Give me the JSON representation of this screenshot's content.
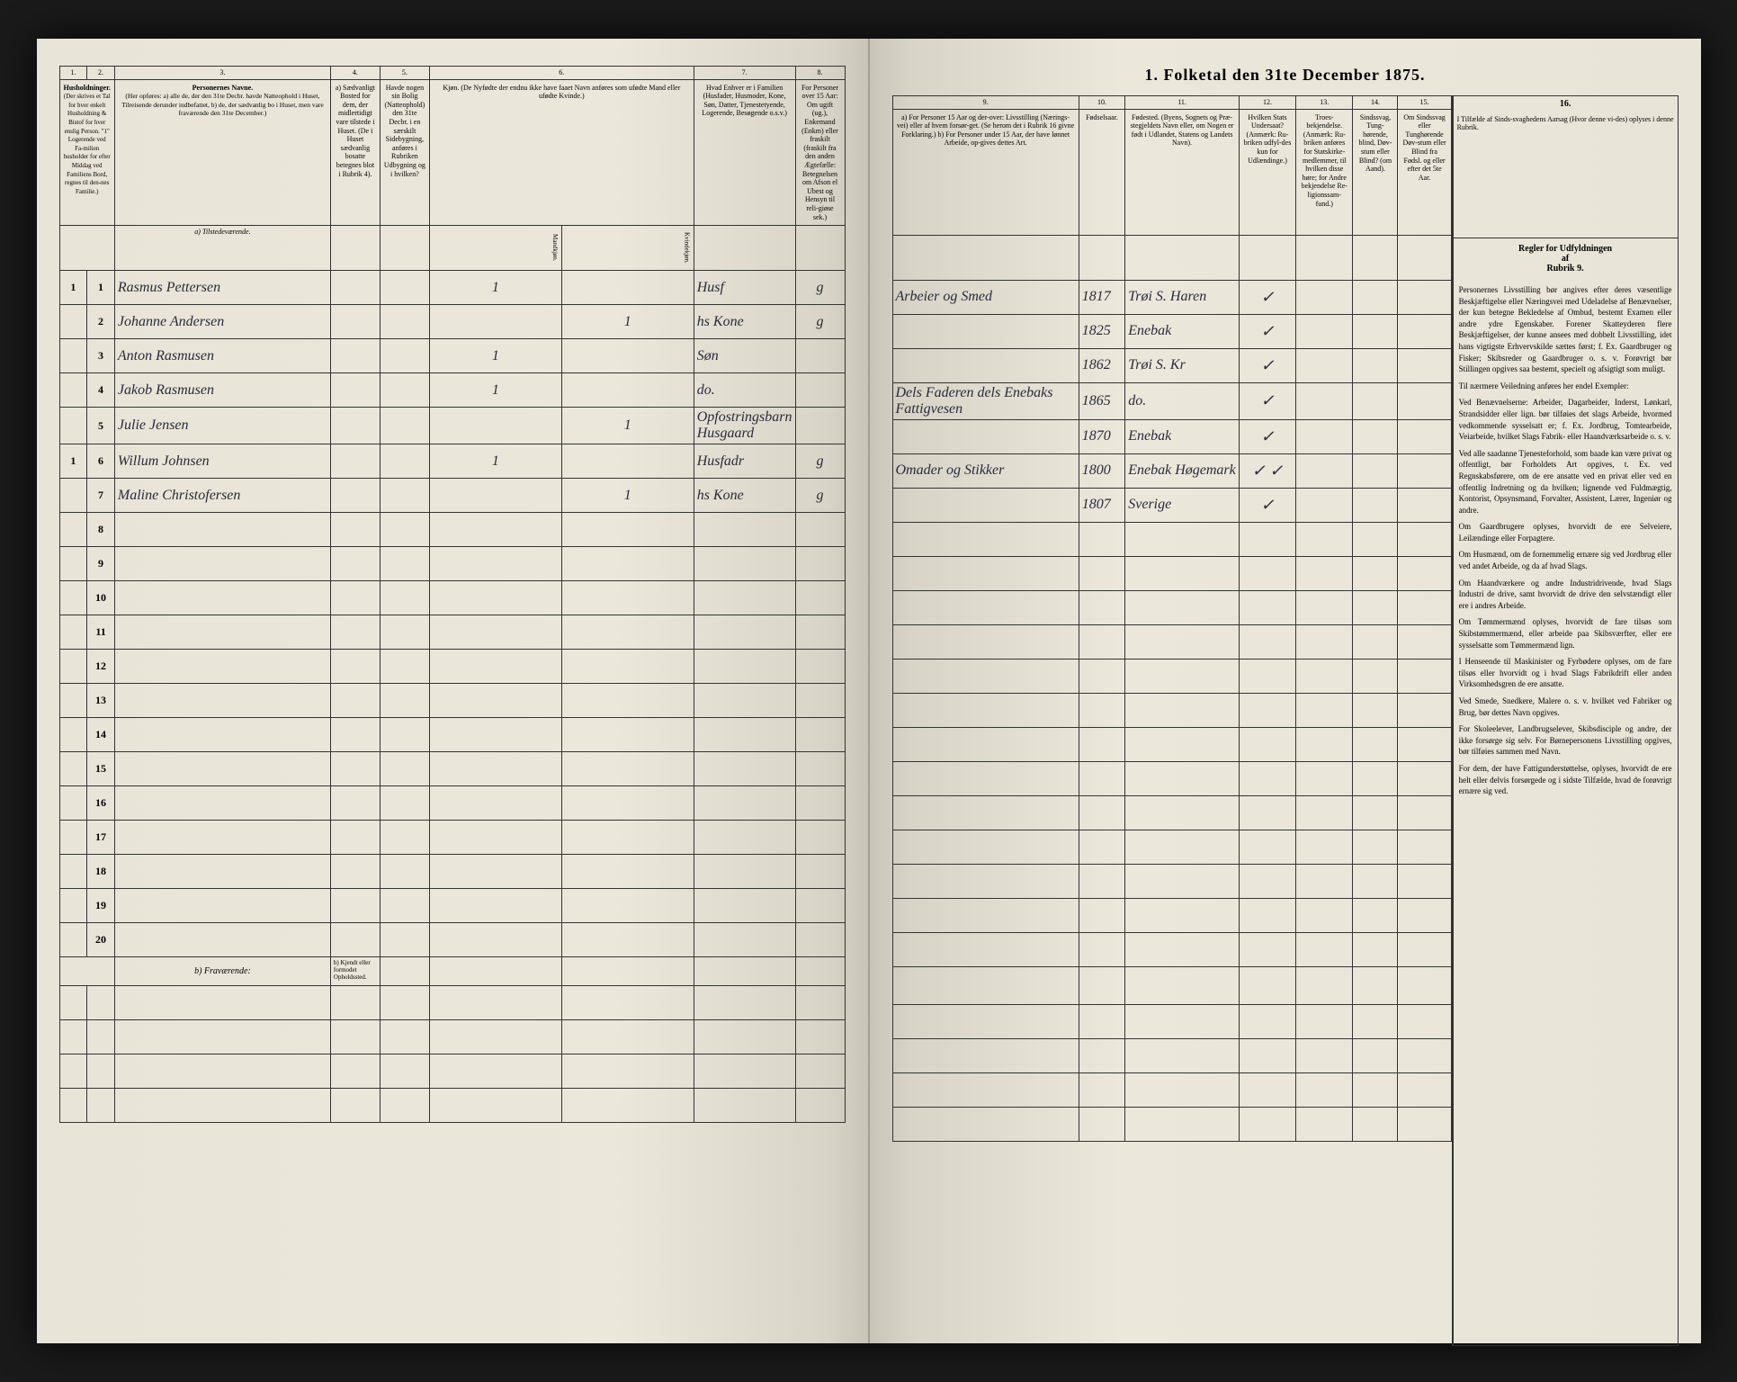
{
  "title": "1. Folketal den 31te December 1875.",
  "left_columns": {
    "c1": "1.",
    "c2": "2.",
    "c3": "3.",
    "c4": "4.",
    "c5": "5.",
    "c6": "6.",
    "c7": "7.",
    "c8": "8."
  },
  "left_headers": {
    "h1": "Husholdninger.",
    "h1_sub": "(Der skrives et Tal for hver enkelt Husholdning & Bistof for hver enslig Person.\n\n\"1\" Logerende ved Fa-milien husholder for efter Middag ved Familiens Bord, regnes til den-nes Familie.)",
    "h3": "Personernes Navne.",
    "h3_sub": "(Her opføres:\na) alle de, der den 31te Decbr. havde Natteophold i Huset, Tilreisende derunder indbefattet,\nb) de, der sædvanlig bo i Huset, men vare fraværende den 31te December.)",
    "h3_section_a": "a) Tilstedeværende.",
    "h3_section_b": "b) Fraværende:",
    "h3_footnote": "b) Kjendt eller formodet Opholdssted.",
    "h4": "a) Sædvanligt Bosted for dem, der midlertidigt vare tilstede i Huset. (De i Huset sædvanlig bosatte betegnes blot i Rubrik 4).",
    "h5": "Havde nogen sin Bolig (Natteophold) den 31te Decbr. i en særskilt Sidebygning, anføres i Rubriken Udbygning og i hvilken?",
    "h6": "Kjøn.\n(De Nyfødte der endnu ikke have faaet Navn anføres som ufødte Mand eller ufødte Kvinde.)",
    "h6_m": "Mandkjøn.",
    "h6_k": "Kvindekjøn.",
    "h7": "Hvad Enhver er i Familien\n(Husfader, Husmoder, Kone, Søn, Datter, Tjenestetyende, Logerende, Besøgende o.s.v.)",
    "h8": "For Personer over 15 Aar: Om ugift (ug.), Enkemand (Enkm) eller fraskilt (fraskilt fra den anden Ægtefælle: Betegnelsen om Afson el Ubest og Hensyn til reli-giøse sek.)"
  },
  "right_columns": {
    "c9": "9.",
    "c10": "10.",
    "c11": "11.",
    "c12": "12.",
    "c13": "13.",
    "c14": "14.",
    "c15": "15.",
    "c16": "16."
  },
  "right_headers": {
    "h9": "a) For Personer 15 Aar og der-over: Livsstilling (Nærings-vei) eller af hvem forsør-get. (Se herom det i Rubrik 16 givne Forklaring.)\nb) For Personer under 15 Aar, der have lønnet Arbeide, op-gives dettes Art.",
    "h10": "Fødselsaar.",
    "h11": "Fødested.\n(Byens, Sognets og Præ-stegjeldets Navn eller, om Nogen er født i Udlandet, Statens og Landets Navn).",
    "h12": "Hvilken Stats Undersaat?\n(Anmærk: Ru-briken udfyl-des kun for Udlændinge.)",
    "h13": "Troes-bekjendelse.\n(Anmærk: Ru-briken anføres for Statskirke-medlemmer, til hvilken disse høre; for Andre bekjendelse Re-ligionssam-fund.)",
    "h14": "Sindssvag, Tung-hørende, blind, Døv-stum eller Blind? (om Aand).",
    "h15": "Om Sindssvag eller Tunghørende Døv-stum eller Blind fra Fødsl. og eller efter det 5te Aar.",
    "h16": "I Tilfælde af Sinds-svaghedens Aarsag (Hvor denne vi-des) oplyses i denne Rubrik."
  },
  "persons": [
    {
      "num": "1",
      "hh": "1",
      "name": "Rasmus Pettersen",
      "sex_m": "1",
      "sex_k": "",
      "rel": "Husf",
      "mar": "g",
      "occ": "Arbeier og Smed",
      "year": "1817",
      "place": "Trøi S. Haren",
      "c12": "✓"
    },
    {
      "num": "2",
      "hh": "",
      "name": "Johanne Andersen",
      "sex_m": "",
      "sex_k": "1",
      "rel": "hs Kone",
      "mar": "g",
      "occ": "",
      "year": "1825",
      "place": "Enebak",
      "c12": "✓"
    },
    {
      "num": "3",
      "hh": "",
      "name": "Anton Rasmusen",
      "sex_m": "1",
      "sex_k": "",
      "rel": "Søn",
      "mar": "",
      "occ": "",
      "year": "1862",
      "place": "Trøi S. Kr",
      "c12": "✓"
    },
    {
      "num": "4",
      "hh": "",
      "name": "Jakob Rasmusen",
      "sex_m": "1",
      "sex_k": "",
      "rel": "do.",
      "mar": "",
      "occ": "Dels Faderen dels Enebaks Fattigvesen",
      "year": "1865",
      "place": "do.",
      "c12": "✓"
    },
    {
      "num": "5",
      "hh": "",
      "name": "Julie Jensen",
      "sex_m": "",
      "sex_k": "1",
      "rel": "Opfostringsbarn Husgaard",
      "mar": "",
      "occ": "",
      "year": "1870",
      "place": "Enebak",
      "c12": "✓"
    },
    {
      "num": "6",
      "hh": "1",
      "name": "Willum Johnsen",
      "sex_m": "1",
      "sex_k": "",
      "rel": "Husfadr",
      "mar": "g",
      "occ": "Omader og Stikker",
      "year": "1800",
      "place": "Enebak Høgemark",
      "c12": "✓ ✓"
    },
    {
      "num": "7",
      "hh": "",
      "name": "Maline Christofersen",
      "sex_m": "",
      "sex_k": "1",
      "rel": "hs Kone",
      "mar": "g",
      "occ": "",
      "year": "1807",
      "place": "Sverige",
      "c12": "✓"
    }
  ],
  "empty_rows": [
    "8",
    "9",
    "10",
    "11",
    "12",
    "13",
    "14",
    "15",
    "16",
    "17",
    "18",
    "19",
    "20"
  ],
  "instructions": {
    "title": "Regler for Udfyldningen\naf\nRubrik 9.",
    "p1": "Personernes Livsstilling bør angives efter deres væsentlige Beskjæftigelse eller Næringsvei med Udeladelse af Benævnelser, der kun betegne Bekledelse af Ombud, bestemt Examen eller andre ydre Egenskaber. Forener Skatteyderen flere Beskjæftigelser, der kunne ansees med dobbelt Livsstilling, idet hans vigtigste Erhvervskilde sættes først; f. Ex. Gaardbruger og Fisker; Skibsreder og Gaardbruger o. s. v. Forøvrigt bør Stillingen opgives saa bestemt, specielt og afsigtigt som muligt.",
    "p2": "Til nærmere Veiledning anføres her endel Exempler:",
    "p3": "Ved Benævnelserne: Arbeider, Dagarbeider, Inderst, Lønkarl, Strandsidder eller lign. bør tilføies det slags Arbeide, hvormed vedkommende sysselsatt er; f. Ex. Jordbrug, Tomtearbeide, Veiarbeide, hvilket Slags Fabrik- eller Haandværksarbeide o. s. v.",
    "p4": "Ved alle saadanne Tjenesteforhold, som baade kan være privat og offentligt, bør Forholdets Art opgives, t. Ex. ved Regnskabsførere, om de ere ansatte ved en privat eller ved en offentlig Indretning og da hvilken; lignende ved Fuldmægtig, Kontorist, Opsynsmand, Forvalter, Assistent, Lærer, Ingeniør og andre.",
    "p5": "Om Gaardbrugere oplyses, hvorvidt de ere Selveiere, Leilændinge eller Forpagtere.",
    "p6": "Om Husmænd, om de fornemmelig ernære sig ved Jordbrug eller ved andet Arbeide, og da af hvad Slags.",
    "p7": "Om Haandværkere og andre Industridrivende, hvad Slags Industri de drive, samt hvorvidt de drive den selvstændigt eller ere i andres Arbeide.",
    "p8": "Om Tømmermænd oplyses, hvorvidt de fare tilsøs som Skibstømmermænd, eller arbeide paa Skibsværfter, eller ere sysselsatte som Tømmermænd lign.",
    "p9": "I Henseende til Maskinister og Fyrbødere oplyses, om de fare tilsøs eller hvorvidt og i hvad Slags Fabrikdrift eller anden Virksomhedsgren de ere ansatte.",
    "p10": "Ved Smede, Snedkere, Malere o. s. v. hvilket ved Fabriker og Brug, bør dettes Navn opgives.",
    "p11": "For Skoleelever, Landbrugselever, Skibsdisciple og andre, der ikke forsørge sig selv. For Børnepersonens Livsstilling opgives, bør tilføies sammen med Navn.",
    "p12": "For dem, der have Fattigunderstøttelse, oplyses, hvorvidt de ere helt eller delvis forsørgede og i sidste Tilfælde, hvad de forøvrigt ernære sig ved."
  }
}
